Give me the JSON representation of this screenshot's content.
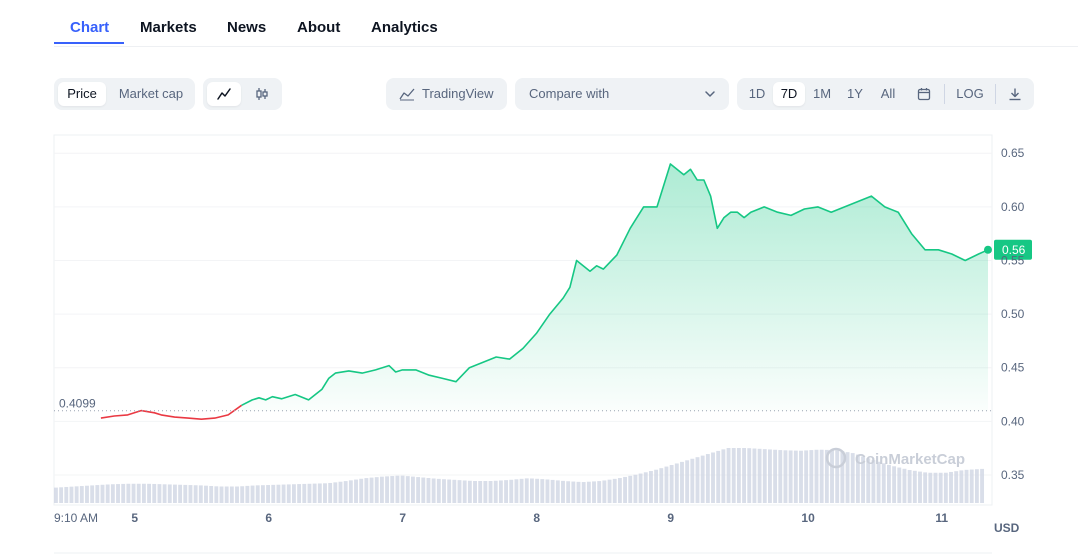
{
  "tabs": [
    {
      "label": "Chart",
      "active": true
    },
    {
      "label": "Markets",
      "active": false
    },
    {
      "label": "News",
      "active": false
    },
    {
      "label": "About",
      "active": false
    },
    {
      "label": "Analytics",
      "active": false
    }
  ],
  "toolbar": {
    "price_label": "Price",
    "market_cap_label": "Market cap",
    "line_icon": "line-chart-icon",
    "candle_icon": "candlestick-icon",
    "tradingview_label": "TradingView",
    "compare_label": "Compare with",
    "ranges": [
      "1D",
      "7D",
      "1M",
      "1Y",
      "All"
    ],
    "active_range": "7D",
    "calendar_icon": "calendar-icon",
    "log_label": "LOG",
    "download_icon": "download-icon"
  },
  "colors": {
    "accent": "#3861fb",
    "up": "#16c784",
    "down": "#ea3943",
    "volume": "#cfd6e4"
  },
  "chart_data": {
    "type": "line",
    "currency_label": "USD",
    "watermark": "CoinMarketCap",
    "open_price_label": "0.4099",
    "open_price": 0.4099,
    "last_price_label": "0.56",
    "last_price": 0.56,
    "y_ticks": [
      "0.65",
      "0.60",
      "0.55",
      "0.50",
      "0.45",
      "0.40",
      "0.35"
    ],
    "y_tick_values": [
      0.65,
      0.6,
      0.55,
      0.5,
      0.45,
      0.4,
      0.35
    ],
    "x_ticks": [
      {
        "label": "9:10 AM",
        "t": 0
      },
      {
        "label": "5",
        "t": 0.6
      },
      {
        "label": "6",
        "t": 1.6
      },
      {
        "label": "7",
        "t": 2.6
      },
      {
        "label": "8",
        "t": 3.6
      },
      {
        "label": "9",
        "t": 4.6
      },
      {
        "label": "10",
        "t": 5.6
      },
      {
        "label": "11",
        "t": 6.6
      }
    ],
    "ylim": [
      0.322,
      0.667
    ],
    "xlim": [
      0,
      7.0
    ],
    "price": {
      "t": [
        0.35,
        0.45,
        0.55,
        0.65,
        0.75,
        0.8,
        0.9,
        1.0,
        1.1,
        1.2,
        1.3,
        1.4,
        1.48,
        1.53,
        1.58,
        1.63,
        1.7,
        1.8,
        1.9,
        2.0,
        2.05,
        2.1,
        2.2,
        2.3,
        2.4,
        2.5,
        2.55,
        2.6,
        2.7,
        2.8,
        2.9,
        3.0,
        3.1,
        3.2,
        3.3,
        3.4,
        3.5,
        3.6,
        3.7,
        3.8,
        3.85,
        3.9,
        4.0,
        4.05,
        4.1,
        4.2,
        4.3,
        4.4,
        4.5,
        4.6,
        4.7,
        4.75,
        4.8,
        4.85,
        4.9,
        4.95,
        5.0,
        5.05,
        5.1,
        5.15,
        5.2,
        5.3,
        5.4,
        5.5,
        5.6,
        5.7,
        5.8,
        5.9,
        6.0,
        6.1,
        6.2,
        6.3,
        6.4,
        6.5,
        6.6,
        6.7,
        6.8,
        6.9,
        6.97
      ],
      "values": [
        0.403,
        0.405,
        0.406,
        0.41,
        0.408,
        0.406,
        0.404,
        0.403,
        0.402,
        0.403,
        0.406,
        0.415,
        0.42,
        0.422,
        0.42,
        0.423,
        0.421,
        0.425,
        0.42,
        0.43,
        0.44,
        0.445,
        0.447,
        0.445,
        0.448,
        0.452,
        0.446,
        0.448,
        0.448,
        0.443,
        0.44,
        0.437,
        0.45,
        0.455,
        0.46,
        0.458,
        0.468,
        0.482,
        0.5,
        0.515,
        0.525,
        0.55,
        0.54,
        0.545,
        0.542,
        0.555,
        0.58,
        0.6,
        0.6,
        0.64,
        0.63,
        0.635,
        0.625,
        0.625,
        0.61,
        0.58,
        0.59,
        0.595,
        0.595,
        0.59,
        0.595,
        0.6,
        0.595,
        0.592,
        0.598,
        0.6,
        0.595,
        0.6,
        0.605,
        0.61,
        0.6,
        0.595,
        0.575,
        0.56,
        0.56,
        0.556,
        0.55,
        0.556,
        0.56
      ],
      "down_until_t": 1.45
    },
    "volume": {
      "t_start": 0.0,
      "t_end": 6.95,
      "values": [
        0.28,
        0.3,
        0.32,
        0.34,
        0.35,
        0.35,
        0.34,
        0.33,
        0.32,
        0.3,
        0.3,
        0.32,
        0.33,
        0.34,
        0.35,
        0.36,
        0.4,
        0.45,
        0.48,
        0.5,
        0.47,
        0.44,
        0.42,
        0.4,
        0.4,
        0.42,
        0.45,
        0.43,
        0.4,
        0.38,
        0.4,
        0.45,
        0.52,
        0.6,
        0.7,
        0.8,
        0.9,
        1.0,
        1.0,
        0.98,
        0.96,
        0.95,
        0.97,
        0.96,
        0.9,
        0.78,
        0.68,
        0.6,
        0.55,
        0.55,
        0.6,
        0.62
      ]
    }
  }
}
